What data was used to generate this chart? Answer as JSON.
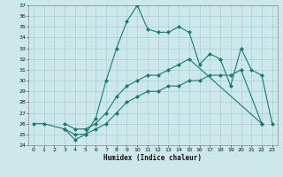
{
  "xlabel": "Humidex (Indice chaleur)",
  "x_values": [
    0,
    1,
    2,
    3,
    4,
    5,
    6,
    7,
    8,
    9,
    10,
    11,
    12,
    13,
    14,
    15,
    16,
    17,
    18,
    19,
    20,
    21,
    22,
    23
  ],
  "line1_x": [
    0,
    1,
    3,
    4,
    5,
    6,
    7,
    8,
    9,
    10,
    11,
    12,
    13,
    14,
    15,
    16,
    17,
    18,
    19,
    20,
    21,
    22,
    23
  ],
  "line1_y": [
    26,
    26,
    25.5,
    24.5,
    25,
    26.5,
    30,
    33,
    35.5,
    37,
    34.8,
    34.5,
    34.5,
    35,
    34.5,
    31.5,
    32.5,
    32,
    29.5,
    33,
    31,
    30.5,
    26
  ],
  "line2_x": [
    3,
    4,
    5,
    6,
    7,
    8,
    9,
    10,
    11,
    12,
    13,
    14,
    15,
    16,
    17,
    18,
    19,
    20,
    22
  ],
  "line2_y": [
    25.5,
    25,
    25,
    25.5,
    26,
    27,
    28,
    28.5,
    29,
    29,
    29.5,
    29.5,
    30,
    30,
    30.5,
    30.5,
    30.5,
    31,
    26
  ],
  "line3_x": [
    3,
    4,
    5,
    6,
    7,
    8,
    9,
    10,
    11,
    12,
    13,
    14,
    15,
    22
  ],
  "line3_y": [
    26,
    25.5,
    25.5,
    26,
    27,
    28.5,
    29.5,
    30,
    30.5,
    30.5,
    31,
    31.5,
    32,
    26
  ],
  "ylim": [
    24,
    37
  ],
  "xlim": [
    -0.5,
    23.5
  ],
  "yticks": [
    24,
    25,
    26,
    27,
    28,
    29,
    30,
    31,
    32,
    33,
    34,
    35,
    36,
    37
  ],
  "xticks": [
    0,
    1,
    2,
    3,
    4,
    5,
    6,
    7,
    8,
    9,
    10,
    11,
    12,
    13,
    14,
    15,
    16,
    17,
    18,
    19,
    20,
    21,
    22,
    23
  ],
  "line_color": "#1a7a6e",
  "bg_color": "#cde8ea",
  "grid_color": "#9fc8cc",
  "marker_size": 2.5,
  "linewidth": 0.8,
  "tick_fontsize": 4.5,
  "xlabel_fontsize": 5.5
}
